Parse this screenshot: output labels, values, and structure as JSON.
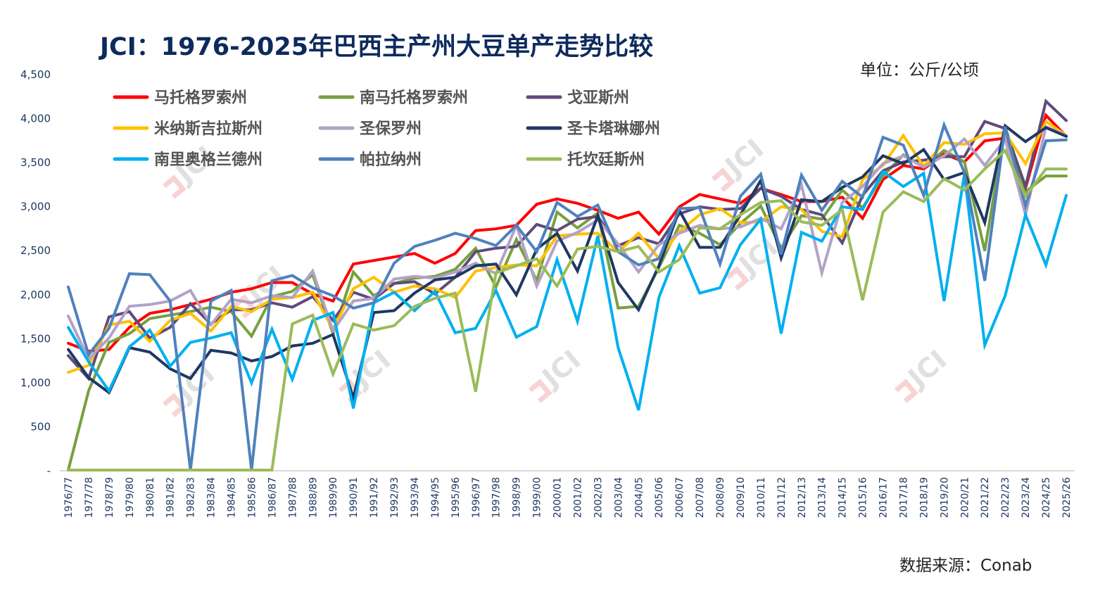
{
  "chart_data": {
    "type": "line",
    "title": "JCI：1976-2025年巴西主产州大豆单产走势比较",
    "unit_label": "单位：公斤/公顷",
    "source_label": "数据来源：Conab",
    "watermark": "JCI",
    "xlabel": "",
    "ylabel": "",
    "ylim": [
      0,
      4500
    ],
    "yticks": [
      0,
      500,
      1000,
      1500,
      2000,
      2500,
      3000,
      3500,
      4000,
      4500
    ],
    "ytick_labels": [
      "-",
      "500",
      "1,000",
      "1,500",
      "2,000",
      "2,500",
      "3,000",
      "3,500",
      "4,000",
      "4,500"
    ],
    "grid": false,
    "legend_position": "top-left",
    "categories": [
      "1976/77",
      "1977/78",
      "1978/79",
      "1979/80",
      "1980/81",
      "1981/82",
      "1982/83",
      "1983/84",
      "1984/85",
      "1985/86",
      "1986/87",
      "1987/88",
      "1988/89",
      "1989/90",
      "1990/91",
      "1991/92",
      "1992/93",
      "1993/94",
      "1994/95",
      "1995/96",
      "1996/97",
      "1997/98",
      "1998/99",
      "1999/00",
      "2000/01",
      "2001/02",
      "2002/03",
      "2003/04",
      "2004/05",
      "2005/06",
      "2006/07",
      "2007/08",
      "2008/09",
      "2009/10",
      "2010/11",
      "2011/12",
      "2012/13",
      "2013/14",
      "2014/15",
      "2015/16",
      "2016/17",
      "2017/18",
      "2018/19",
      "2019/20",
      "2020/21",
      "2021/22",
      "2022/23",
      "2023/24",
      "2024/25",
      "2025/26"
    ],
    "series": [
      {
        "name": "马托格罗索州",
        "color": "#ff0000",
        "values": [
          1440,
          1350,
          1370,
          1620,
          1780,
          1820,
          1880,
          1940,
          2020,
          2060,
          2130,
          2130,
          2000,
          1920,
          2340,
          2380,
          2420,
          2460,
          2350,
          2460,
          2720,
          2740,
          2780,
          3020,
          3080,
          3030,
          2950,
          2860,
          2930,
          2680,
          2990,
          3130,
          3080,
          3030,
          3200,
          3130,
          3050,
          3050,
          3100,
          2860,
          3300,
          3460,
          3420,
          3590,
          3500,
          3740,
          3770,
          3200,
          4030,
          3790
        ]
      },
      {
        "name": "南马托格罗索州",
        "color": "#77a03f",
        "values": [
          0,
          900,
          1450,
          1550,
          1720,
          1760,
          1800,
          1850,
          1800,
          1520,
          1970,
          2030,
          2220,
          1550,
          2250,
          1980,
          2120,
          2180,
          2200,
          2280,
          2520,
          2080,
          2620,
          2150,
          2930,
          2750,
          2920,
          1840,
          1860,
          2300,
          2780,
          2690,
          2560,
          2800,
          3000,
          2520,
          2890,
          2850,
          3180,
          2980,
          3340,
          3580,
          3440,
          3630,
          3500,
          2490,
          3900,
          3160,
          3340,
          3340
        ]
      },
      {
        "name": "戈亚斯州",
        "color": "#604a7b",
        "values": [
          1300,
          1040,
          1740,
          1800,
          1500,
          1620,
          1890,
          1660,
          1820,
          1820,
          1900,
          1850,
          1970,
          1700,
          2020,
          1940,
          2120,
          2140,
          2000,
          2190,
          2480,
          2520,
          2540,
          2790,
          2720,
          2850,
          2880,
          2550,
          2640,
          2570,
          2910,
          2990,
          2960,
          2970,
          3200,
          3110,
          2960,
          2900,
          2580,
          3120,
          3400,
          3500,
          3520,
          3560,
          3560,
          3960,
          3880,
          3220,
          4190,
          3970
        ]
      },
      {
        "name": "米纳斯吉拉斯州",
        "color": "#ffc000",
        "values": [
          1110,
          1190,
          1650,
          1690,
          1460,
          1700,
          1780,
          1580,
          1860,
          1800,
          1940,
          1960,
          2020,
          1600,
          2060,
          2190,
          2020,
          2090,
          2060,
          1960,
          2260,
          2300,
          2330,
          2320,
          2660,
          2680,
          2690,
          2480,
          2690,
          2400,
          2710,
          2900,
          2970,
          2810,
          2820,
          2990,
          2960,
          2710,
          2650,
          3300,
          3460,
          3800,
          3450,
          3720,
          3700,
          3820,
          3830,
          3480,
          3960,
          3800
        ]
      },
      {
        "name": "圣保罗州",
        "color": "#b2a2c7",
        "values": [
          1750,
          1260,
          1500,
          1860,
          1880,
          1920,
          2040,
          1650,
          1940,
          1900,
          1980,
          1960,
          2260,
          1580,
          1920,
          1950,
          2170,
          2200,
          2180,
          2250,
          2350,
          2230,
          2780,
          2090,
          2600,
          2700,
          2840,
          2570,
          2250,
          2560,
          2690,
          2780,
          2740,
          2760,
          2860,
          2740,
          3240,
          2240,
          3040,
          3220,
          3480,
          3570,
          3440,
          3570,
          3760,
          3460,
          3760,
          2900,
          3900,
          3800
        ]
      },
      {
        "name": "圣卡塔琳娜州",
        "color": "#1f3864",
        "values": [
          1370,
          1050,
          880,
          1390,
          1340,
          1150,
          1040,
          1360,
          1330,
          1240,
          1290,
          1410,
          1440,
          1540,
          820,
          1790,
          1810,
          2010,
          2160,
          2190,
          2320,
          2340,
          1990,
          2510,
          2690,
          2260,
          2890,
          2130,
          1820,
          2320,
          2950,
          2530,
          2530,
          2900,
          3290,
          2410,
          3070,
          3050,
          3210,
          3330,
          3570,
          3480,
          3640,
          3300,
          3380,
          2810,
          3910,
          3730,
          3890,
          3790
        ]
      },
      {
        "name": "南里奥格兰德州",
        "color": "#00b0f0",
        "values": [
          1620,
          1230,
          900,
          1400,
          1590,
          1180,
          1450,
          1500,
          1560,
          990,
          1600,
          1030,
          1700,
          1790,
          700,
          1900,
          2020,
          1810,
          2030,
          1560,
          1610,
          2040,
          1510,
          1630,
          2390,
          1690,
          2660,
          1390,
          680,
          1960,
          2550,
          2010,
          2070,
          2560,
          2850,
          1550,
          2700,
          2600,
          2990,
          2960,
          3390,
          3220,
          3370,
          1920,
          3360,
          1420,
          1980,
          2900,
          2330,
          3120
        ]
      },
      {
        "name": "帕拉纳州",
        "color": "#4f81bd",
        "values": [
          2080,
          1310,
          1610,
          2230,
          2220,
          1920,
          0,
          1920,
          2040,
          0,
          2150,
          2210,
          2070,
          1980,
          1840,
          1900,
          2350,
          2540,
          2610,
          2690,
          2630,
          2550,
          2780,
          2480,
          3040,
          2880,
          3010,
          2480,
          2330,
          2400,
          2970,
          2980,
          2340,
          3110,
          3360,
          2450,
          3350,
          2950,
          3280,
          3100,
          3780,
          3690,
          3120,
          3920,
          3380,
          2150,
          3900,
          3000,
          3740,
          3750
        ]
      },
      {
        "name": "托坎廷斯州",
        "color": "#9bbb59",
        "values": [
          0,
          0,
          0,
          0,
          0,
          0,
          0,
          0,
          0,
          0,
          0,
          1660,
          1760,
          1090,
          1660,
          1590,
          1640,
          1860,
          1950,
          2010,
          890,
          2240,
          2320,
          2400,
          2090,
          2510,
          2540,
          2480,
          2540,
          2250,
          2390,
          2750,
          2740,
          2900,
          3040,
          3060,
          2820,
          2780,
          2960,
          1930,
          2930,
          3160,
          3050,
          3310,
          3180,
          3420,
          3630,
          3110,
          3420,
          3420
        ]
      }
    ]
  }
}
